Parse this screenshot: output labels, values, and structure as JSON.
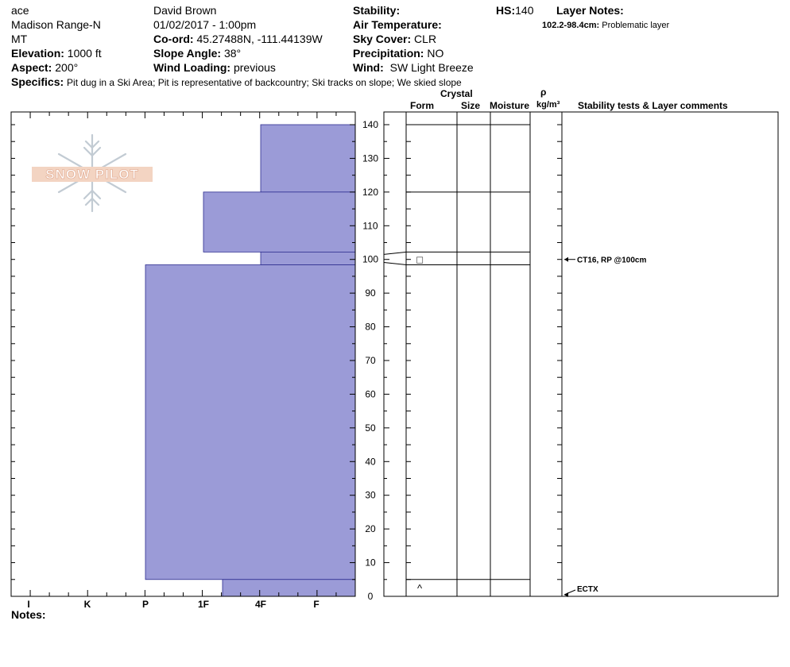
{
  "header": {
    "observer_initials": "ace",
    "location": "Madison Range-N",
    "state": "MT",
    "elevation_label": "Elevation:",
    "elevation_value": "1000 ft",
    "aspect_label": "Aspect:",
    "aspect_value": "200°",
    "observer_name": "David Brown",
    "datetime": "01/02/2017 - 1:00pm",
    "coord_label": "Co-ord:",
    "coord_value": "45.27488N, -111.44139W",
    "slope_label": "Slope Angle:",
    "slope_value": "38°",
    "wind_loading_label": "Wind Loading:",
    "wind_loading_value": "previous",
    "stability_label": "Stability:",
    "air_temp_label": "Air Temperature:",
    "sky_cover_label": "Sky Cover:",
    "sky_cover_value": "CLR",
    "precip_label": "Precipitation:",
    "precip_value": "NO",
    "wind_label": "Wind:",
    "wind_value": "SW  Light Breeze",
    "hs_label": "HS:",
    "hs_value": "140",
    "layer_notes_label": "Layer Notes:",
    "layer_note_range": "102.2-98.4cm:",
    "layer_note_text": "Problematic layer",
    "specifics_label": "Specifics:",
    "specifics_text": "Pit dug in a Ski Area;  Pit is representative of backcountry;  Ski tracks on slope;  We skied slope"
  },
  "logo_text": "SNOW PILOT",
  "notes_label": "Notes:",
  "column_headers": {
    "crystal": "Crystal",
    "form": "Form",
    "size": "Size",
    "moisture": "Moisture",
    "rho": "ρ",
    "density_unit": "kg/m³",
    "comments": "Stability tests & Layer comments"
  },
  "colors": {
    "hardness_fill": "#9b9bd7",
    "hardness_stroke": "#2b2b8f"
  },
  "chart_data": {
    "type": "bar",
    "orientation": "horizontal",
    "x_axis": {
      "categories": [
        "I",
        "K",
        "P",
        "1F",
        "4F",
        "F"
      ],
      "direction": "hardness increases to the left"
    },
    "y_axis": {
      "label": "",
      "unit": "cm",
      "range": [
        0,
        145
      ],
      "ticks": [
        0,
        10,
        20,
        30,
        40,
        50,
        60,
        70,
        80,
        90,
        100,
        110,
        120,
        130,
        140
      ],
      "minor_step": 5
    },
    "layers": [
      {
        "top": 140,
        "bottom": 120,
        "hardness": "4F"
      },
      {
        "top": 120,
        "bottom": 102.2,
        "hardness": "1F"
      },
      {
        "top": 102.2,
        "bottom": 98.4,
        "hardness": "4F"
      },
      {
        "top": 98.4,
        "bottom": 5,
        "hardness": "P"
      },
      {
        "top": 5,
        "bottom": 0,
        "hardness": "1F-"
      }
    ],
    "grain_forms": [
      {
        "depth": 100,
        "symbol": "□"
      },
      {
        "depth": 2.5,
        "symbol": "^"
      }
    ],
    "tests": [
      {
        "depth": 100,
        "label": "CT16, RP @100cm"
      },
      {
        "depth": 0,
        "label": "ECTX"
      }
    ]
  }
}
